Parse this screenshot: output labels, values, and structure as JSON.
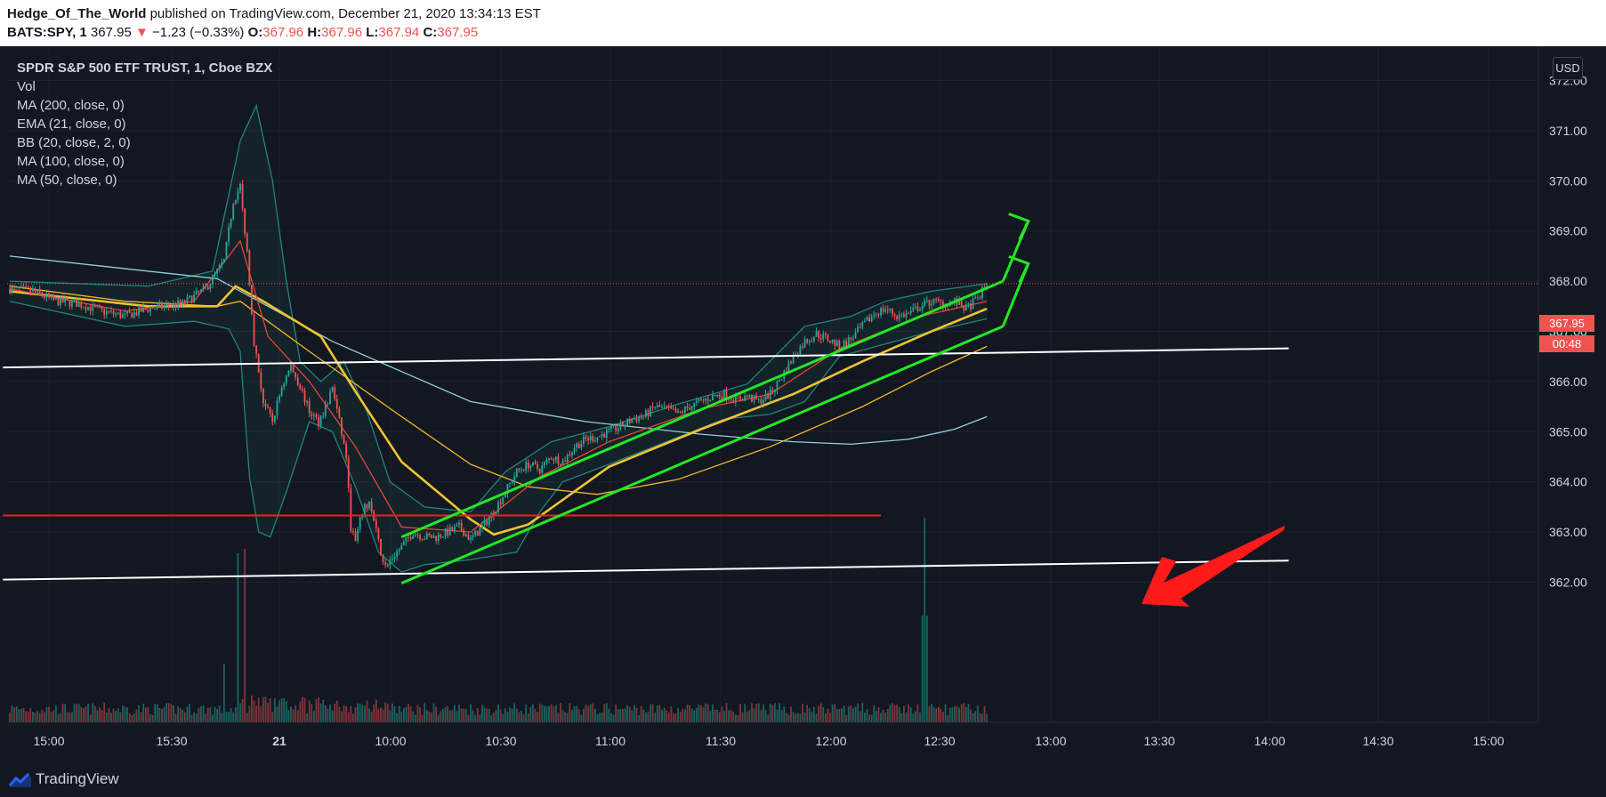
{
  "header": {
    "author": "Hedge_Of_The_World",
    "published_text": "published on TradingView.com, December 21, 2020 13:34:13 EST",
    "symbol": "BATS:SPY, 1",
    "last": "367.95",
    "change": "−1.23 (−0.33%)",
    "o_label": "O:",
    "o": "367.96",
    "h_label": "H:",
    "h": "367.96",
    "l_label": "L:",
    "l": "367.94",
    "c_label": "C:",
    "c": "367.95"
  },
  "legend": [
    "SPDR S&P 500 ETF TRUST, 1, Cboe BZX",
    "Vol",
    "MA (200, close, 0)",
    "EMA (21, close, 0)",
    "BB (20, close, 2, 0)",
    "MA (100, close, 0)",
    "MA (50, close, 0)"
  ],
  "currency": "USD",
  "price_tag": "367.95",
  "timer_tag": "00:48",
  "brand": "TradingView",
  "colors": {
    "background": "#131722",
    "up": "#26a69a",
    "down": "#ef5350",
    "channel": "#22e822",
    "ma200": "#8fd3d6",
    "ema21": "#e8433a",
    "ma100": "#f2b629",
    "ma50": "#f0c330",
    "bb": "#21857a",
    "support": "#ffffff",
    "level": "#e8221f",
    "arrow": "#ff1a1a"
  },
  "chart_data": {
    "type": "candlestick",
    "y_ticks": [
      "372.00",
      "371.00",
      "370.00",
      "369.00",
      "368.00",
      "367.00",
      "366.00",
      "365.00",
      "364.00",
      "363.00",
      "362.00"
    ],
    "x_ticks": [
      "15:00",
      "15:30",
      "21",
      "10:00",
      "10:30",
      "11:00",
      "11:30",
      "12:00",
      "12:30",
      "13:00",
      "13:30",
      "14:00",
      "14:30",
      "15:00"
    ],
    "ylim": [
      361.2,
      372.4
    ],
    "close_path": [
      [
        0,
        367.85
      ],
      [
        10,
        367.8
      ],
      [
        20,
        367.6
      ],
      [
        30,
        367.55
      ],
      [
        40,
        367.4
      ],
      [
        50,
        367.3
      ],
      [
        60,
        367.45
      ],
      [
        75,
        367.55
      ],
      [
        85,
        367.85
      ],
      [
        93,
        368.4
      ],
      [
        97,
        369.6
      ],
      [
        100,
        369.9
      ],
      [
        101,
        369.4
      ],
      [
        103,
        368.6
      ],
      [
        106,
        366.8
      ],
      [
        110,
        365.6
      ],
      [
        114,
        365.2
      ],
      [
        118,
        365.9
      ],
      [
        122,
        366.3
      ],
      [
        126,
        365.9
      ],
      [
        130,
        365.4
      ],
      [
        134,
        365.2
      ],
      [
        138,
        365.6
      ],
      [
        140,
        365.9
      ],
      [
        143,
        365.2
      ],
      [
        146,
        364.5
      ],
      [
        148,
        363.1
      ],
      [
        150,
        362.8
      ],
      [
        153,
        363.4
      ],
      [
        156,
        363.6
      ],
      [
        158,
        363.2
      ],
      [
        161,
        362.6
      ],
      [
        163,
        362.3
      ],
      [
        166,
        362.5
      ],
      [
        170,
        362.7
      ],
      [
        175,
        363.0
      ],
      [
        180,
        362.9
      ],
      [
        185,
        362.9
      ],
      [
        190,
        363.0
      ],
      [
        195,
        363.1
      ],
      [
        200,
        362.85
      ],
      [
        205,
        363.1
      ],
      [
        210,
        363.4
      ],
      [
        215,
        363.8
      ],
      [
        220,
        364.2
      ],
      [
        225,
        364.35
      ],
      [
        230,
        364.25
      ],
      [
        235,
        364.5
      ],
      [
        240,
        364.4
      ],
      [
        245,
        364.7
      ],
      [
        250,
        364.85
      ],
      [
        255,
        364.9
      ],
      [
        260,
        365.0
      ],
      [
        265,
        365.1
      ],
      [
        270,
        365.25
      ],
      [
        275,
        365.3
      ],
      [
        280,
        365.5
      ],
      [
        285,
        365.45
      ],
      [
        290,
        365.35
      ],
      [
        295,
        365.5
      ],
      [
        300,
        365.6
      ],
      [
        305,
        365.7
      ],
      [
        310,
        365.75
      ],
      [
        315,
        365.65
      ],
      [
        320,
        365.7
      ],
      [
        325,
        365.6
      ],
      [
        330,
        365.75
      ],
      [
        335,
        366.1
      ],
      [
        340,
        366.5
      ],
      [
        345,
        366.8
      ],
      [
        350,
        366.95
      ],
      [
        355,
        366.85
      ],
      [
        360,
        366.7
      ],
      [
        365,
        366.85
      ],
      [
        370,
        367.1
      ],
      [
        375,
        367.35
      ],
      [
        380,
        367.45
      ],
      [
        385,
        367.3
      ],
      [
        390,
        367.35
      ],
      [
        395,
        367.5
      ],
      [
        400,
        367.6
      ],
      [
        405,
        367.55
      ],
      [
        410,
        367.6
      ],
      [
        415,
        367.45
      ],
      [
        420,
        367.65
      ],
      [
        424,
        367.95
      ]
    ],
    "series": [
      {
        "name": "MA (200, close, 0)",
        "values": [
          [
            0,
            368.5
          ],
          [
            40,
            368.3
          ],
          [
            90,
            368.05
          ],
          [
            140,
            366.8
          ],
          [
            200,
            365.6
          ],
          [
            250,
            365.2
          ],
          [
            300,
            364.95
          ],
          [
            340,
            364.8
          ],
          [
            365,
            364.75
          ],
          [
            390,
            364.85
          ],
          [
            410,
            365.05
          ],
          [
            424,
            365.3
          ]
        ]
      },
      {
        "name": "EMA (21, close, 0)",
        "values": [
          [
            0,
            367.85
          ],
          [
            50,
            367.4
          ],
          [
            80,
            367.6
          ],
          [
            100,
            368.8
          ],
          [
            112,
            366.9
          ],
          [
            130,
            366.0
          ],
          [
            150,
            364.7
          ],
          [
            170,
            363.1
          ],
          [
            200,
            363.0
          ],
          [
            230,
            364.1
          ],
          [
            260,
            364.8
          ],
          [
            300,
            365.45
          ],
          [
            330,
            365.75
          ],
          [
            360,
            366.65
          ],
          [
            395,
            367.3
          ],
          [
            424,
            367.6
          ]
        ]
      },
      {
        "name": "MA (100, close, 0)",
        "values": [
          [
            0,
            367.9
          ],
          [
            50,
            367.6
          ],
          [
            90,
            367.5
          ],
          [
            100,
            367.6
          ],
          [
            130,
            366.6
          ],
          [
            170,
            365.3
          ],
          [
            200,
            364.35
          ],
          [
            225,
            363.9
          ],
          [
            255,
            363.75
          ],
          [
            290,
            364.05
          ],
          [
            330,
            364.7
          ],
          [
            370,
            365.5
          ],
          [
            400,
            366.2
          ],
          [
            424,
            366.7
          ]
        ]
      },
      {
        "name": "MA (50, close, 0)",
        "values": [
          [
            0,
            367.8
          ],
          [
            60,
            367.5
          ],
          [
            90,
            367.5
          ],
          [
            98,
            367.9
          ],
          [
            110,
            367.6
          ],
          [
            135,
            366.9
          ],
          [
            150,
            365.8
          ],
          [
            170,
            364.4
          ],
          [
            200,
            363.25
          ],
          [
            210,
            362.95
          ],
          [
            225,
            363.15
          ],
          [
            260,
            364.3
          ],
          [
            300,
            365.05
          ],
          [
            340,
            365.75
          ],
          [
            370,
            366.4
          ],
          [
            400,
            367.0
          ],
          [
            424,
            367.45
          ]
        ]
      },
      {
        "name": "BB upper",
        "values": [
          [
            0,
            368.0
          ],
          [
            60,
            367.9
          ],
          [
            88,
            368.2
          ],
          [
            100,
            370.8
          ],
          [
            107,
            371.5
          ],
          [
            114,
            370.0
          ],
          [
            120,
            368.0
          ],
          [
            126,
            366.4
          ],
          [
            135,
            366.0
          ],
          [
            145,
            366.4
          ],
          [
            155,
            365.4
          ],
          [
            165,
            364.0
          ],
          [
            180,
            363.5
          ],
          [
            200,
            363.4
          ],
          [
            215,
            364.2
          ],
          [
            235,
            364.8
          ],
          [
            260,
            365.1
          ],
          [
            290,
            365.55
          ],
          [
            320,
            365.95
          ],
          [
            345,
            367.1
          ],
          [
            365,
            367.3
          ],
          [
            380,
            367.6
          ],
          [
            400,
            367.8
          ],
          [
            424,
            367.95
          ]
        ]
      },
      {
        "name": "BB lower",
        "values": [
          [
            0,
            367.6
          ],
          [
            50,
            367.1
          ],
          [
            80,
            367.2
          ],
          [
            95,
            367.05
          ],
          [
            100,
            366.6
          ],
          [
            104,
            364.1
          ],
          [
            108,
            363.0
          ],
          [
            113,
            362.9
          ],
          [
            120,
            363.8
          ],
          [
            130,
            365.2
          ],
          [
            140,
            365.0
          ],
          [
            150,
            363.9
          ],
          [
            160,
            362.6
          ],
          [
            170,
            362.2
          ],
          [
            180,
            362.35
          ],
          [
            200,
            362.45
          ],
          [
            220,
            362.6
          ],
          [
            230,
            363.4
          ],
          [
            240,
            364.0
          ],
          [
            260,
            364.35
          ],
          [
            285,
            364.8
          ],
          [
            310,
            365.25
          ],
          [
            330,
            365.35
          ],
          [
            345,
            365.6
          ],
          [
            360,
            366.5
          ],
          [
            380,
            366.75
          ],
          [
            400,
            367.0
          ],
          [
            424,
            367.25
          ]
        ]
      }
    ],
    "lines": {
      "channel_upper": [
        [
          170,
          362.9
        ],
        [
          431,
          368.0
        ]
      ],
      "channel_lower": [
        [
          170,
          361.98
        ],
        [
          431,
          367.1
        ]
      ],
      "arrow_upper": [
        [
          431,
          368.0
        ],
        [
          442,
          369.2
        ]
      ],
      "arrow_lower": [
        [
          431,
          367.1
        ],
        [
          442,
          368.35
        ]
      ],
      "support_upper": [
        [
          -3,
          366.28
        ],
        [
          555,
          366.66
        ]
      ],
      "support_lower": [
        [
          -3,
          362.05
        ],
        [
          555,
          362.43
        ]
      ],
      "red_level": {
        "y": 363.33,
        "from": -3,
        "to": 378
      }
    }
  }
}
